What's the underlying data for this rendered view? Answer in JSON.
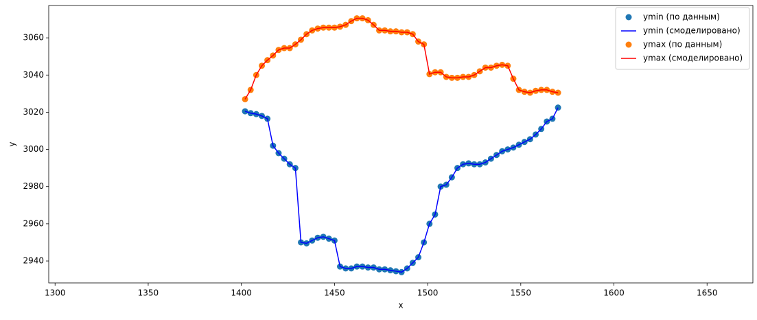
{
  "chart_data": {
    "type": "scatter",
    "x_label": "x",
    "y_label": "y",
    "xlim": [
      1296.6,
      1674.6
    ],
    "ylim": [
      2928.2,
      3077.4
    ],
    "xticks": [
      1300,
      1350,
      1400,
      1450,
      1500,
      1550,
      1600,
      1650
    ],
    "yticks": [
      2940,
      2960,
      2980,
      3000,
      3020,
      3040,
      3060
    ],
    "legend": "upper right",
    "x": [
      1402,
      1405,
      1408,
      1411,
      1414,
      1417,
      1420,
      1423,
      1426,
      1429,
      1432,
      1435,
      1438,
      1441,
      1444,
      1447,
      1450,
      1453,
      1456,
      1459,
      1462,
      1465,
      1468,
      1471,
      1474,
      1477,
      1480,
      1483,
      1486,
      1489,
      1492,
      1495,
      1498,
      1501,
      1504,
      1507,
      1510,
      1513,
      1516,
      1519,
      1522,
      1525,
      1528,
      1531,
      1534,
      1537,
      1540,
      1543,
      1546,
      1549,
      1552,
      1555,
      1558,
      1561,
      1564,
      1567,
      1570
    ],
    "series": [
      {
        "name": "ymin (по данным)",
        "mode": "markers",
        "color": "#1f77b4",
        "values": [
          3020.5,
          3019.5,
          3019,
          3018,
          3016.5,
          3002,
          2998,
          2995,
          2992,
          2990,
          2950,
          2949.5,
          2951,
          2952.5,
          2953,
          2952,
          2951,
          2937,
          2936,
          2936,
          2937,
          2937,
          2936.5,
          2936.5,
          2935.5,
          2935.5,
          2935,
          2934.5,
          2934,
          2936,
          2939,
          2942,
          2950,
          2960,
          2965,
          2980,
          2981,
          2985,
          2990,
          2992,
          2992.5,
          2992,
          2992,
          2993,
          2995,
          2997,
          2999,
          3000,
          3001,
          3002.5,
          3004,
          3005.5,
          3008,
          3011,
          3015,
          3016.5,
          3022.5
        ]
      },
      {
        "name": "ymin (смоделировано)",
        "mode": "line",
        "color": "#0000ff",
        "values": [
          3020.5,
          3019.5,
          3019,
          3018,
          3016.5,
          3002,
          2998,
          2995,
          2992,
          2990,
          2950,
          2949.5,
          2951,
          2952.5,
          2953,
          2952,
          2951,
          2937,
          2936,
          2936,
          2937,
          2937,
          2936.5,
          2936.5,
          2935.5,
          2935.5,
          2935,
          2934.5,
          2934,
          2936,
          2939,
          2942,
          2950,
          2960,
          2965,
          2980,
          2981,
          2985,
          2990,
          2992,
          2992.5,
          2992,
          2992,
          2993,
          2995,
          2997,
          2999,
          3000,
          3001,
          3002.5,
          3004,
          3005.5,
          3008,
          3011,
          3015,
          3016.5,
          3022.5
        ]
      },
      {
        "name": "ymax (по данным)",
        "mode": "markers",
        "color": "#ff7f0e",
        "values": [
          3027,
          3032,
          3040,
          3045,
          3048,
          3050.5,
          3053.5,
          3054.5,
          3054.5,
          3056.5,
          3059,
          3062,
          3064,
          3065,
          3065.5,
          3065.5,
          3065.5,
          3066,
          3067,
          3069,
          3070.5,
          3070.5,
          3069.5,
          3067,
          3064,
          3064,
          3063.5,
          3063.5,
          3063,
          3063,
          3062,
          3058,
          3056.5,
          3040.5,
          3041.5,
          3041.5,
          3039,
          3038.5,
          3038.5,
          3039,
          3039,
          3040,
          3042,
          3044,
          3044,
          3045,
          3045.5,
          3045,
          3038,
          3032,
          3031,
          3030.5,
          3031.5,
          3032,
          3032,
          3031,
          3030.5
        ]
      },
      {
        "name": "ymax (смоделировано)",
        "mode": "line",
        "color": "#ff0000",
        "values": [
          3027,
          3032,
          3040,
          3045,
          3048,
          3050.5,
          3053.5,
          3054.5,
          3054.5,
          3056.5,
          3059,
          3062,
          3064,
          3065,
          3065.5,
          3065.5,
          3065.5,
          3066,
          3067,
          3069,
          3070.5,
          3070.5,
          3069.5,
          3067,
          3064,
          3064,
          3063.5,
          3063.5,
          3063,
          3063,
          3062,
          3058,
          3056.5,
          3040.5,
          3041.5,
          3041.5,
          3039,
          3038.5,
          3038.5,
          3039,
          3039,
          3040,
          3042,
          3044,
          3044,
          3045,
          3045.5,
          3045,
          3038,
          3032,
          3031,
          3030.5,
          3031.5,
          3032,
          3032,
          3031,
          3030.5
        ]
      }
    ]
  }
}
